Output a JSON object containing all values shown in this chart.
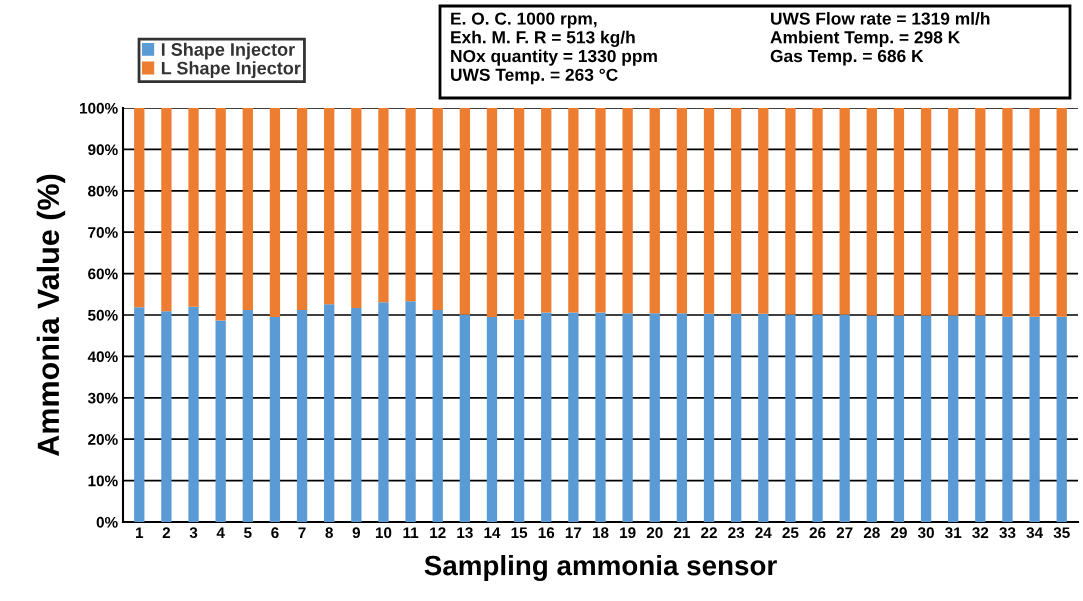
{
  "chart_data": {
    "type": "bar",
    "stacked": true,
    "xlabel": "Sampling ammonia sensor",
    "ylabel": "Ammonia Value (%)",
    "categories": [
      "1",
      "2",
      "3",
      "4",
      "5",
      "6",
      "7",
      "8",
      "9",
      "10",
      "11",
      "12",
      "13",
      "14",
      "15",
      "16",
      "17",
      "18",
      "19",
      "20",
      "21",
      "22",
      "23",
      "24",
      "25",
      "26",
      "27",
      "28",
      "29",
      "30",
      "31",
      "32",
      "33",
      "34",
      "35"
    ],
    "series": [
      {
        "name": "I Shape Injector",
        "color": "#5b9bd5",
        "values": [
          51.9,
          50.9,
          52.0,
          48.7,
          51.2,
          49.5,
          51.2,
          52.6,
          51.7,
          53.1,
          53.3,
          51.2,
          50.1,
          49.5,
          48.9,
          50.6,
          50.6,
          50.6,
          50.4,
          50.4,
          50.4,
          50.3,
          50.3,
          50.3,
          50.1,
          50.1,
          50.1,
          49.9,
          49.9,
          49.9,
          49.9,
          49.9,
          49.6,
          49.6,
          49.6
        ]
      },
      {
        "name": "L Shape Injector",
        "color": "#ed7d31",
        "values": [
          48.1,
          49.1,
          48.0,
          51.3,
          48.8,
          50.5,
          48.8,
          47.4,
          48.3,
          46.9,
          46.7,
          48.8,
          49.9,
          50.5,
          51.1,
          49.4,
          49.4,
          49.4,
          49.6,
          49.6,
          49.6,
          49.7,
          49.7,
          49.7,
          49.9,
          49.9,
          49.9,
          50.1,
          50.1,
          50.1,
          50.1,
          50.1,
          50.4,
          50.4,
          50.4
        ]
      }
    ],
    "ylim": [
      0,
      100
    ],
    "yticks": [
      {
        "value": 0,
        "label": "0%"
      },
      {
        "value": 10,
        "label": "10%"
      },
      {
        "value": 20,
        "label": "20%"
      },
      {
        "value": 30,
        "label": "30%"
      },
      {
        "value": 40,
        "label": "40%"
      },
      {
        "value": 50,
        "label": "50%"
      },
      {
        "value": 60,
        "label": "60%"
      },
      {
        "value": 70,
        "label": "70%"
      },
      {
        "value": 80,
        "label": "80%"
      },
      {
        "value": 90,
        "label": "90%"
      },
      {
        "value": 100,
        "label": "100%"
      }
    ],
    "grid": "y",
    "legend": "top",
    "annotations": [
      "E. O. C. 1000 rpm,\nExh. M. F. R = 513 kg/h\nNOx quantity = 1330 ppm\nUWS Temp. = 263 °C\nUWS Flow rate = 1319 ml/h\nAmbient Temp. = 298 K\nGas Temp. = 686 K"
    ]
  }
}
